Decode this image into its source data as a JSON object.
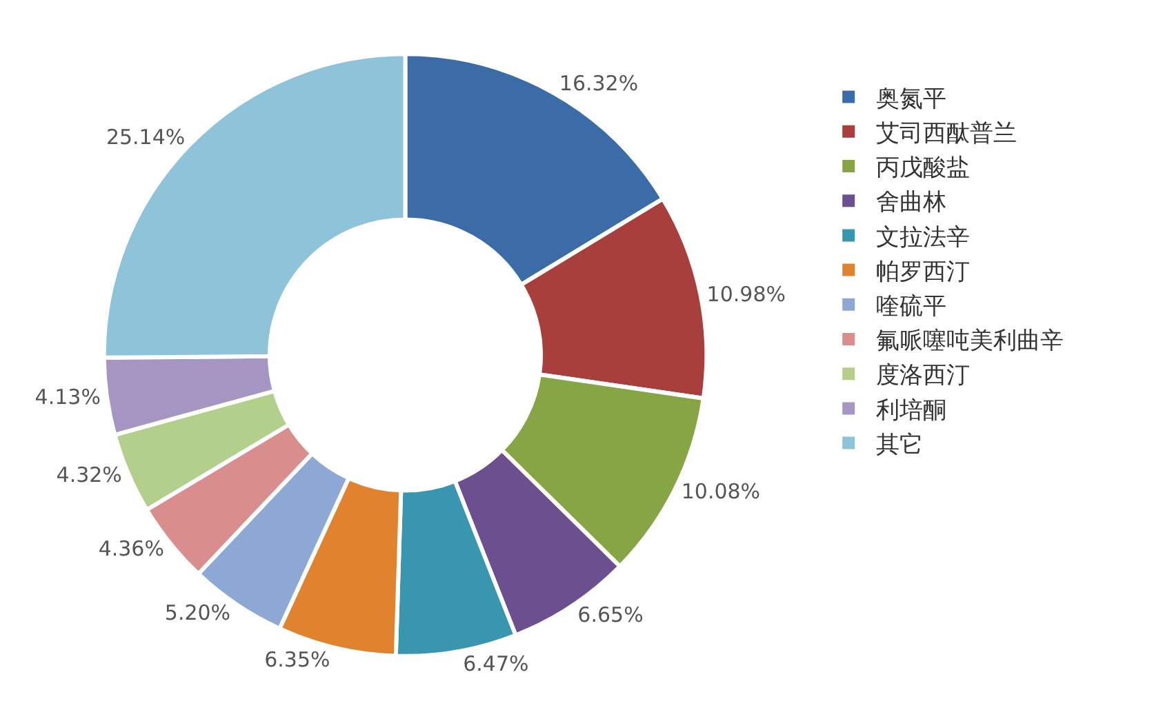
{
  "chart_data": {
    "type": "donut",
    "categories": [
      "奥氮平",
      "艾司西酞普兰",
      "丙戊酸盐",
      "舍曲林",
      "文拉法辛",
      "帕罗西汀",
      "喹硫平",
      "氟哌噻吨美利曲辛",
      "度洛西汀",
      "利培酮",
      "其它"
    ],
    "values": [
      16.32,
      10.98,
      10.08,
      6.65,
      6.47,
      6.35,
      5.2,
      4.36,
      4.32,
      4.13,
      25.14
    ],
    "value_labels": [
      "16.32%",
      "10.98%",
      "10.08%",
      "6.65%",
      "6.47%",
      "6.35%",
      "5.20%",
      "4.36%",
      "4.32%",
      "4.13%",
      "25.14%"
    ],
    "colors": [
      "#3c6ca8",
      "#a83f3c",
      "#86a544",
      "#6c4f8f",
      "#3a96ae",
      "#e0822e",
      "#8ea8d6",
      "#d98d8c",
      "#b3cf8c",
      "#a595c3",
      "#8ec3da"
    ],
    "legend": "right"
  }
}
